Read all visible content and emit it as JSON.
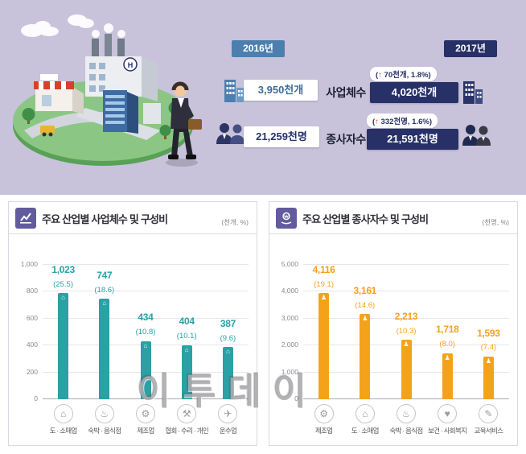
{
  "colors": {
    "lavender_bg": "#c8c2da",
    "teal": "#2aa1a5",
    "orange": "#f5a21b",
    "navy": "#273168",
    "blue": "#4d7fae",
    "purple": "#625b9e",
    "red_arrow": "#e8431f"
  },
  "summary": {
    "year_left": "2016년",
    "year_right": "2017년",
    "rows": [
      {
        "label": "사업체수",
        "left_value": "3,950천개",
        "right_value": "4,020천개",
        "delta_open": "(",
        "delta_arrow": "↑",
        "delta_rest": " 70천개, 1.8%)"
      },
      {
        "label": "종사자수",
        "left_value": "21,259천명",
        "right_value": "21,591천명",
        "delta_open": "(",
        "delta_arrow": "↑",
        "delta_rest": " 332천명, 1.6%)"
      }
    ]
  },
  "watermark": "이투데이",
  "chart_data": [
    {
      "type": "bar",
      "title": "주요 산업별 사업체수 및 구성비",
      "unit": "(천개, %)",
      "categories": [
        "도 · 소매업",
        "숙박 · 음식점",
        "제조업",
        "협회 · 수리 · 개인",
        "운수업"
      ],
      "values": [
        1023,
        747,
        434,
        404,
        387
      ],
      "share": [
        25.5,
        18.6,
        10.8,
        10.1,
        9.6
      ],
      "value_labels": [
        "1,023",
        "747",
        "434",
        "404",
        "387"
      ],
      "share_labels": [
        "(25.5)",
        "(18.6)",
        "(10.8)",
        "(10.1)",
        "(9.6)"
      ],
      "ylim": [
        0,
        1000
      ],
      "yticks": [
        "0",
        "200",
        "400",
        "600",
        "800",
        "1,000"
      ],
      "grid": true,
      "legend": false,
      "bar_color": "#2aa1a5",
      "bar_icon": {
        "name": "building-icon",
        "glyph": "⌂"
      },
      "icons": [
        {
          "name": "storefront-icon",
          "glyph": "⌂"
        },
        {
          "name": "lodging-restaurant-icon",
          "glyph": "♨"
        },
        {
          "name": "gear-icon",
          "glyph": "⚙"
        },
        {
          "name": "repair-icon",
          "glyph": "⚒"
        },
        {
          "name": "transport-icon",
          "glyph": "✈"
        }
      ]
    },
    {
      "type": "bar",
      "title": "주요 산업별 종사자수 및 구성비",
      "unit": "(천명, %)",
      "categories": [
        "제조업",
        "도 · 소매업",
        "숙박 · 음식점",
        "보건 · 사회복지",
        "교육서비스"
      ],
      "values": [
        4116,
        3161,
        2213,
        1718,
        1593
      ],
      "share": [
        19.1,
        14.6,
        10.3,
        8.0,
        7.4
      ],
      "value_labels": [
        "4,116",
        "3,161",
        "2,213",
        "1,718",
        "1,593"
      ],
      "share_labels": [
        "(19.1)",
        "(14.6)",
        "(10.3)",
        "(8.0)",
        "(7.4)"
      ],
      "ylim": [
        0,
        5000
      ],
      "yticks": [
        "0",
        "1,000",
        "2,000",
        "3,000",
        "4,000",
        "5,000"
      ],
      "grid": true,
      "legend": false,
      "bar_color": "#f5a21b",
      "bar_icon": {
        "name": "person-icon",
        "glyph": "♟"
      },
      "icons": [
        {
          "name": "gear-icon",
          "glyph": "⚙"
        },
        {
          "name": "storefront-icon",
          "glyph": "⌂"
        },
        {
          "name": "lodging-restaurant-icon",
          "glyph": "♨"
        },
        {
          "name": "health-welfare-icon",
          "glyph": "♥"
        },
        {
          "name": "education-icon",
          "glyph": "✎"
        }
      ]
    }
  ]
}
